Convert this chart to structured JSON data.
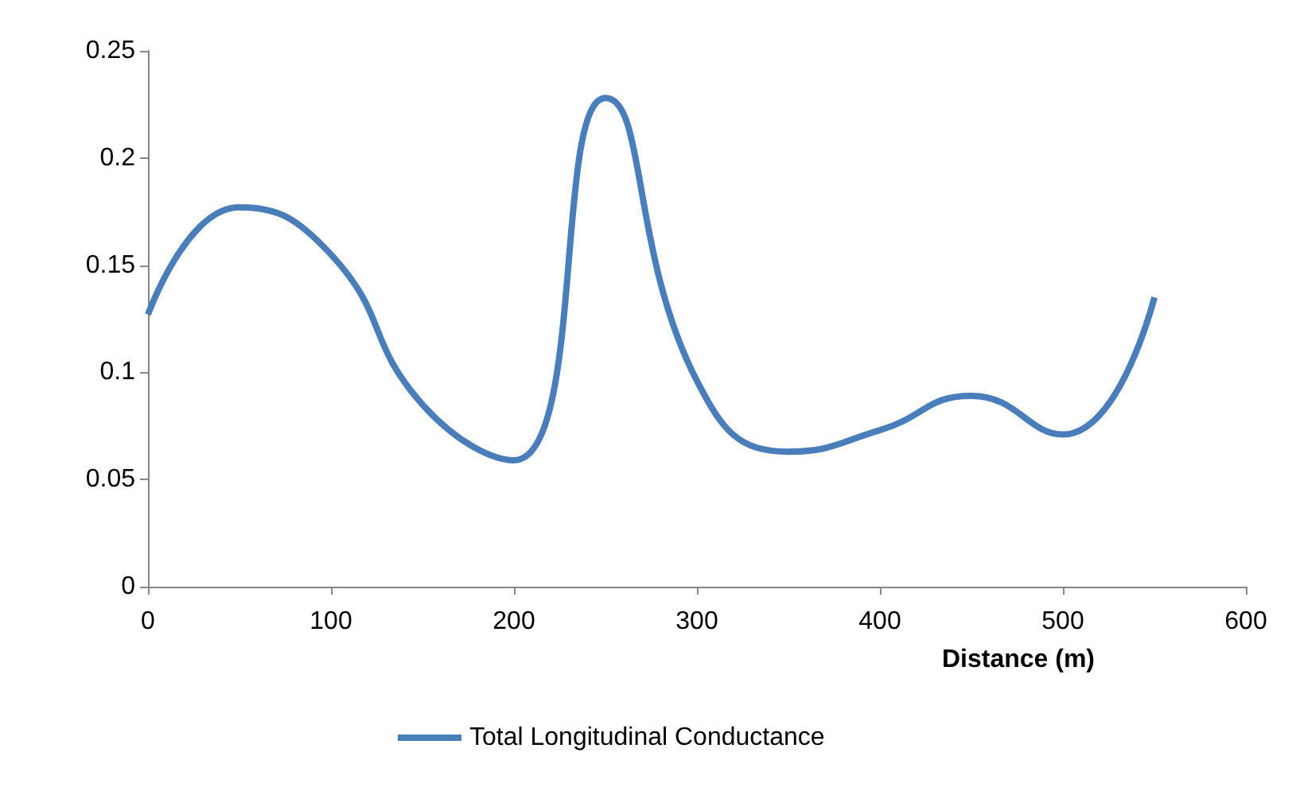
{
  "chart_data": {
    "type": "line",
    "xlabel": "Distance (m)",
    "x": [
      0,
      50,
      100,
      150,
      200,
      250,
      300,
      350,
      400,
      450,
      500,
      550
    ],
    "series": [
      {
        "name": "Total Longitudinal Conductance",
        "color": "#4a7ebb",
        "values": [
          0.127,
          0.177,
          0.155,
          0.085,
          0.059,
          0.228,
          0.096,
          0.063,
          0.073,
          0.089,
          0.071,
          0.135
        ]
      }
    ],
    "xlim": [
      0,
      600
    ],
    "xticks": [
      0,
      100,
      200,
      300,
      400,
      500,
      600
    ],
    "ylim": [
      0,
      0.25
    ],
    "yticks": [
      0,
      0.05,
      0.1,
      0.15,
      0.2,
      0.25
    ],
    "grid": false,
    "legend": "bottom",
    "marker": "none",
    "line_style": "solid"
  }
}
